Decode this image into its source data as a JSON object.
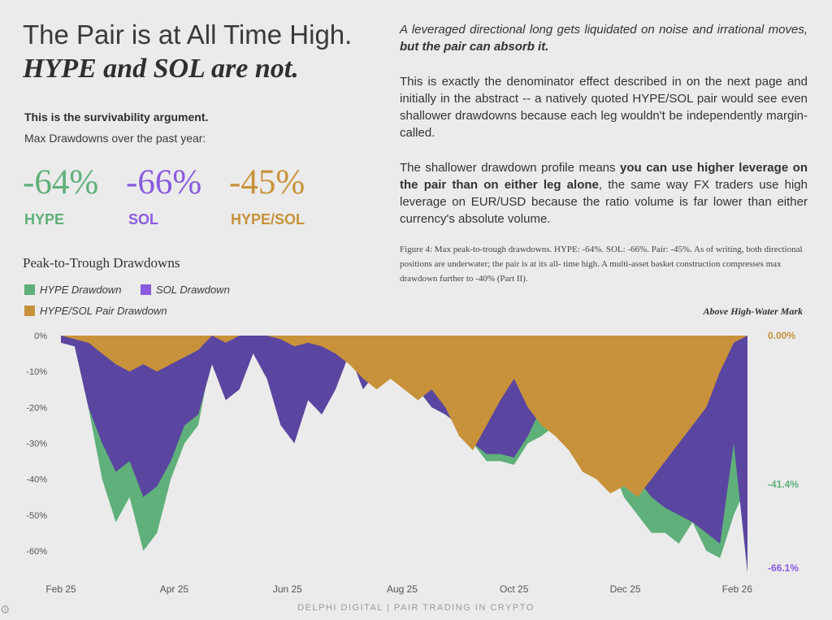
{
  "header": {
    "title_line1": "The Pair is at All Time High.",
    "title_line2": "HYPE and SOL are not.",
    "survivability": "This is the survivability argument.",
    "max_dd_label": "Max Drawdowns over the past year:"
  },
  "stats": [
    {
      "value": "-64%",
      "label": "HYPE"
    },
    {
      "value": "-66%",
      "label": "SOL"
    },
    {
      "value": "-45%",
      "label": "HYPE/SOL"
    }
  ],
  "body_text": {
    "p1_a": "A leveraged directional long gets liquidated on noise and irrational moves, ",
    "p1_b": "but the pair can absorb it.",
    "p2": "This is exactly the denominator effect described in on the next page and initially in the abstract -- a natively quoted HYPE/SOL pair would see even shallower drawdowns because each leg wouldn't be independently margin-called.",
    "p3_a": "The shallower drawdown profile means ",
    "p3_b": "you can use higher leverage on the pair than on either leg alone",
    "p3_c": ", the same way FX traders use high leverage on EUR/USD because the ratio volume is far lower than either currency's absolute volume.",
    "caption": "Figure 4: Max peak-to-trough drawdowns. HYPE: -64%. SOL: -66%. Pair: -45%. As of writing, both directional positions are underwater; the pair is at its all- time high. A multi-asset basket construction compresses max drawdown further to -40% (Part II)."
  },
  "colors": {
    "hype": "#5fb07a",
    "sol": "#5a46a0",
    "sol_light": "#8a5be0",
    "pair": "#c8923a"
  },
  "footer": "DELPHI DIGITAL | PAIR TRADING IN CRYPTO",
  "chart_data": {
    "type": "area",
    "title": "Peak-to-Trough Drawdowns",
    "annotation": "Above High-Water Mark",
    "y_ticks": [
      "0%",
      "-10%",
      "-20%",
      "-30%",
      "-40%",
      "-50%",
      "-60%"
    ],
    "x_ticks": [
      "Feb 25",
      "Apr 25",
      "Jun 25",
      "Aug 25",
      "Oct 25",
      "Dec 25",
      "Feb 26"
    ],
    "ylim": [
      -65,
      0
    ],
    "end_labels": {
      "pair": "0.00%",
      "hype": "-41.4%",
      "sol": "-66.1%"
    },
    "x": [
      0,
      0.02,
      0.04,
      0.06,
      0.08,
      0.1,
      0.12,
      0.14,
      0.16,
      0.18,
      0.2,
      0.22,
      0.24,
      0.26,
      0.28,
      0.3,
      0.32,
      0.34,
      0.36,
      0.38,
      0.4,
      0.42,
      0.44,
      0.46,
      0.48,
      0.5,
      0.52,
      0.54,
      0.56,
      0.58,
      0.6,
      0.62,
      0.64,
      0.66,
      0.68,
      0.7,
      0.72,
      0.74,
      0.76,
      0.78,
      0.8,
      0.82,
      0.84,
      0.86,
      0.88,
      0.9,
      0.92,
      0.94,
      0.96,
      0.98,
      1
    ],
    "series": [
      {
        "name": "HYPE Drawdown",
        "values": [
          -2,
          -3,
          -20,
          -40,
          -52,
          -45,
          -60,
          -55,
          -40,
          -30,
          -25,
          -5,
          -15,
          -5,
          0,
          -2,
          -5,
          -15,
          -5,
          -10,
          -8,
          -2,
          -10,
          -3,
          -5,
          -12,
          -15,
          -20,
          -22,
          -25,
          -30,
          -35,
          -35,
          -36,
          -30,
          -28,
          -25,
          -20,
          -25,
          -30,
          -35,
          -45,
          -50,
          -55,
          -55,
          -58,
          -52,
          -60,
          -62,
          -50,
          -41.4
        ]
      },
      {
        "name": "SOL Drawdown",
        "values": [
          -2,
          -3,
          -20,
          -30,
          -38,
          -35,
          -45,
          -42,
          -35,
          -25,
          -22,
          -8,
          -18,
          -15,
          -5,
          -12,
          -25,
          -30,
          -18,
          -22,
          -15,
          -5,
          -15,
          -10,
          -10,
          -12,
          -15,
          -20,
          -22,
          -25,
          -30,
          -33,
          -33,
          -34,
          -28,
          -20,
          -12,
          -25,
          -30,
          -10,
          -15,
          -30,
          -40,
          -45,
          -48,
          -50,
          -52,
          -55,
          -58,
          -30,
          -66.1
        ]
      },
      {
        "name": "HYPE/SOL Pair Drawdown",
        "values": [
          0,
          -1,
          -2,
          -5,
          -8,
          -10,
          -8,
          -10,
          -8,
          -6,
          -4,
          0,
          -2,
          0,
          0,
          0,
          -1,
          -3,
          -2,
          -3,
          -5,
          -8,
          -12,
          -15,
          -12,
          -15,
          -18,
          -15,
          -20,
          -28,
          -32,
          -25,
          -18,
          -12,
          -20,
          -25,
          -28,
          -32,
          -38,
          -40,
          -44,
          -42,
          -45,
          -40,
          -35,
          -30,
          -25,
          -20,
          -10,
          -2,
          0
        ]
      }
    ]
  }
}
